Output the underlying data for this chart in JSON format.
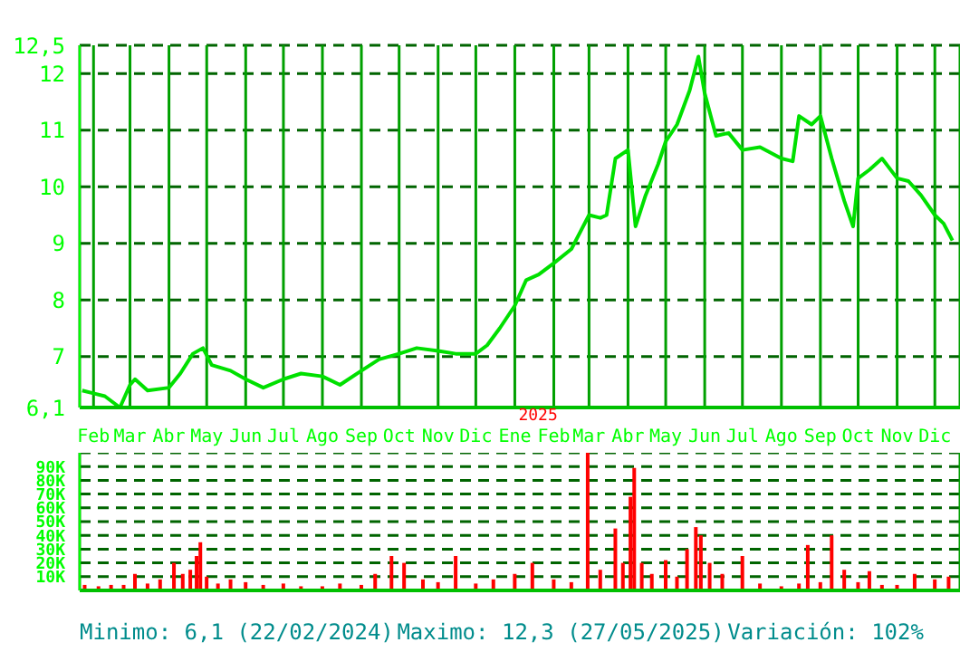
{
  "chart_data": [
    {
      "type": "line",
      "color": "#00e000",
      "x": [
        "2024-01-23",
        "2024-02-01",
        "2024-02-10",
        "2024-02-22",
        "2024-03-01",
        "2024-03-05",
        "2024-03-15",
        "2024-04-01",
        "2024-04-10",
        "2024-04-20",
        "2024-04-28",
        "2024-05-05",
        "2024-05-20",
        "2024-06-01",
        "2024-06-15",
        "2024-07-01",
        "2024-07-15",
        "2024-08-01",
        "2024-08-15",
        "2024-09-01",
        "2024-09-15",
        "2024-10-01",
        "2024-10-15",
        "2024-11-01",
        "2024-11-15",
        "2024-12-01",
        "2024-12-10",
        "2024-12-20",
        "2025-01-01",
        "2025-01-10",
        "2025-01-20",
        "2025-02-01",
        "2025-02-15",
        "2025-03-01",
        "2025-03-10",
        "2025-03-15",
        "2025-03-22",
        "2025-04-01",
        "2025-04-07",
        "2025-04-15",
        "2025-04-25",
        "2025-05-01",
        "2025-05-10",
        "2025-05-20",
        "2025-05-27",
        "2025-06-01",
        "2025-06-10",
        "2025-06-20",
        "2025-07-01",
        "2025-07-15",
        "2025-08-01",
        "2025-08-10",
        "2025-08-15",
        "2025-08-25",
        "2025-09-01",
        "2025-09-10",
        "2025-09-20",
        "2025-09-27",
        "2025-10-01",
        "2025-10-10",
        "2025-10-20",
        "2025-11-01",
        "2025-11-10",
        "2025-11-20",
        "2025-12-01",
        "2025-12-08",
        "2025-12-15"
      ],
      "values": [
        6.4,
        6.35,
        6.3,
        6.1,
        6.5,
        6.6,
        6.4,
        6.45,
        6.7,
        7.05,
        7.15,
        6.85,
        6.75,
        6.6,
        6.45,
        6.6,
        6.7,
        6.65,
        6.5,
        6.75,
        6.95,
        7.05,
        7.15,
        7.1,
        7.05,
        7.05,
        7.2,
        7.5,
        7.9,
        8.35,
        8.45,
        8.65,
        8.9,
        9.5,
        9.45,
        9.5,
        10.5,
        10.65,
        9.3,
        9.85,
        10.4,
        10.8,
        11.1,
        11.7,
        12.3,
        11.65,
        10.9,
        10.95,
        10.65,
        10.7,
        10.5,
        10.45,
        11.25,
        11.1,
        11.25,
        10.5,
        9.75,
        9.3,
        10.15,
        10.3,
        10.5,
        10.15,
        10.1,
        9.85,
        9.5,
        9.35,
        9.05
      ],
      "xlim": [
        "2024-01-21",
        "2025-12-21"
      ],
      "xticks": [
        {
          "value": "2024-02-01",
          "label": "Feb"
        },
        {
          "value": "2024-03-01",
          "label": "Mar"
        },
        {
          "value": "2024-04-01",
          "label": "Abr"
        },
        {
          "value": "2024-05-01",
          "label": "May"
        },
        {
          "value": "2024-06-01",
          "label": "Jun"
        },
        {
          "value": "2024-07-01",
          "label": "Jul"
        },
        {
          "value": "2024-08-01",
          "label": "Ago"
        },
        {
          "value": "2024-09-01",
          "label": "Sep"
        },
        {
          "value": "2024-10-01",
          "label": "Oct"
        },
        {
          "value": "2024-11-01",
          "label": "Nov"
        },
        {
          "value": "2024-12-01",
          "label": "Dic"
        },
        {
          "value": "2025-01-01",
          "label": "Ene"
        },
        {
          "value": "2025-02-01",
          "label": "Feb"
        },
        {
          "value": "2025-03-01",
          "label": "Mar"
        },
        {
          "value": "2025-04-01",
          "label": "Abr"
        },
        {
          "value": "2025-05-01",
          "label": "May"
        },
        {
          "value": "2025-06-01",
          "label": "Jun"
        },
        {
          "value": "2025-07-01",
          "label": "Jul"
        },
        {
          "value": "2025-08-01",
          "label": "Ago"
        },
        {
          "value": "2025-09-01",
          "label": "Sep"
        },
        {
          "value": "2025-10-01",
          "label": "Oct"
        },
        {
          "value": "2025-11-01",
          "label": "Nov"
        },
        {
          "value": "2025-12-01",
          "label": "Dic"
        }
      ],
      "ylim": [
        6.1,
        12.5
      ],
      "yticks": [
        {
          "value": 6.1,
          "label": "6,1"
        },
        7,
        8,
        9,
        10,
        11,
        12,
        {
          "value": 12.5,
          "label": "12,5"
        }
      ],
      "grid": true,
      "marker": "none",
      "line_style": "solid",
      "annotations": [
        "2025"
      ]
    },
    {
      "type": "bar",
      "color": "#ff0000",
      "tick_labels": "y",
      "x": [
        "2024-01-25",
        "2024-02-05",
        "2024-02-15",
        "2024-02-25",
        "2024-03-05",
        "2024-03-15",
        "2024-03-25",
        "2024-04-05",
        "2024-04-12",
        "2024-04-18",
        "2024-04-23",
        "2024-04-26",
        "2024-05-01",
        "2024-05-10",
        "2024-05-20",
        "2024-06-01",
        "2024-06-15",
        "2024-07-01",
        "2024-07-15",
        "2024-08-01",
        "2024-08-15",
        "2024-09-01",
        "2024-09-12",
        "2024-09-25",
        "2024-10-05",
        "2024-10-20",
        "2024-11-01",
        "2024-11-15",
        "2024-12-01",
        "2024-12-15",
        "2025-01-01",
        "2025-01-15",
        "2025-02-01",
        "2025-02-15",
        "2025-02-28",
        "2025-03-10",
        "2025-03-22",
        "2025-03-28",
        "2025-04-03",
        "2025-04-06",
        "2025-04-12",
        "2025-04-20",
        "2025-05-01",
        "2025-05-10",
        "2025-05-18",
        "2025-05-25",
        "2025-05-29",
        "2025-06-05",
        "2025-06-15",
        "2025-07-01",
        "2025-07-15",
        "2025-08-01",
        "2025-08-15",
        "2025-08-22",
        "2025-09-01",
        "2025-09-10",
        "2025-09-20",
        "2025-10-01",
        "2025-10-10",
        "2025-10-20",
        "2025-11-01",
        "2025-11-15",
        "2025-12-01",
        "2025-12-12"
      ],
      "values": [
        4000,
        3000,
        4000,
        4000,
        12000,
        5000,
        8000,
        20000,
        12000,
        15000,
        25000,
        35000,
        10000,
        5000,
        8000,
        6000,
        4000,
        5000,
        3000,
        3000,
        5000,
        4000,
        12000,
        25000,
        20000,
        8000,
        6000,
        25000,
        5000,
        8000,
        12000,
        20000,
        8000,
        6000,
        100000,
        15000,
        45000,
        20000,
        68000,
        89000,
        20000,
        12000,
        22000,
        10000,
        30000,
        46000,
        40000,
        20000,
        12000,
        25000,
        5000,
        3000,
        5000,
        33000,
        6000,
        40000,
        15000,
        6000,
        14000,
        4000,
        4000,
        12000,
        8000,
        10000
      ],
      "xlim": [
        "2024-01-21",
        "2025-12-21"
      ],
      "xticks": [
        {
          "value": "2024-02-01",
          "label": null
        },
        {
          "value": "2024-03-01",
          "label": null
        },
        {
          "value": "2024-04-01",
          "label": null
        },
        {
          "value": "2024-05-01",
          "label": null
        },
        {
          "value": "2024-06-01",
          "label": null
        },
        {
          "value": "2024-07-01",
          "label": null
        },
        {
          "value": "2024-08-01",
          "label": null
        },
        {
          "value": "2024-09-01",
          "label": null
        },
        {
          "value": "2024-10-01",
          "label": null
        },
        {
          "value": "2024-11-01",
          "label": null
        },
        {
          "value": "2024-12-01",
          "label": null
        },
        {
          "value": "2025-01-01",
          "label": null
        },
        {
          "value": "2025-02-01",
          "label": null
        },
        {
          "value": "2025-03-01",
          "label": null
        },
        {
          "value": "2025-04-01",
          "label": null
        },
        {
          "value": "2025-05-01",
          "label": null
        },
        {
          "value": "2025-06-01",
          "label": null
        },
        {
          "value": "2025-07-01",
          "label": null
        },
        {
          "value": "2025-08-01",
          "label": null
        },
        {
          "value": "2025-09-01",
          "label": null
        },
        {
          "value": "2025-10-01",
          "label": null
        },
        {
          "value": "2025-11-01",
          "label": null
        },
        {
          "value": "2025-12-01",
          "label": null
        }
      ],
      "ylim": [
        0,
        100000
      ],
      "yticks": [
        {
          "value": 10000,
          "label": "10K"
        },
        {
          "value": 20000,
          "label": "20K"
        },
        {
          "value": 30000,
          "label": "30K"
        },
        {
          "value": 40000,
          "label": "40K"
        },
        {
          "value": 50000,
          "label": "50K"
        },
        {
          "value": 60000,
          "label": "60K"
        },
        {
          "value": 70000,
          "label": "70K"
        },
        {
          "value": 80000,
          "label": "80K"
        },
        {
          "value": 90000,
          "label": "90K"
        }
      ],
      "grid": true,
      "annotations": [
        "Minimo: 6,1 (22/02/2024)",
        "Maximo: 12,3 (27/05/2025)",
        "Variación: 102%"
      ]
    }
  ]
}
